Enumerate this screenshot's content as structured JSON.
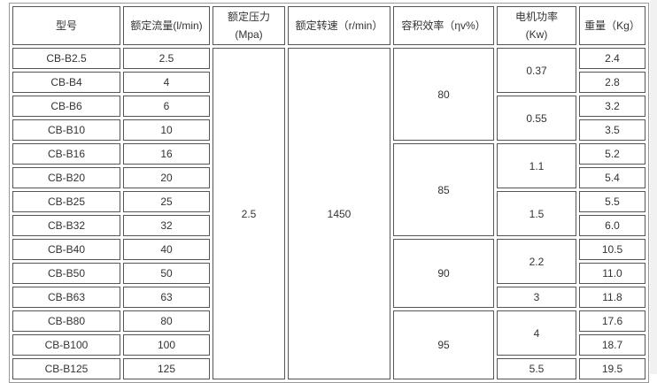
{
  "headers": [
    "型号",
    "额定流量(l/min)",
    "额定压力\n(Mpa)",
    "额定转速（r/min）",
    "容积效率（ηv%）",
    "电机功率\n(Kw)",
    "重量（Kg）"
  ],
  "rows": [
    {
      "model": "CB-B2.5",
      "flow": "2.5",
      "weight": "2.4"
    },
    {
      "model": "CB-B4",
      "flow": "4",
      "weight": "2.8"
    },
    {
      "model": "CB-B6",
      "flow": "6",
      "weight": "3.2"
    },
    {
      "model": "CB-B10",
      "flow": "10",
      "weight": "3.5"
    },
    {
      "model": "CB-B16",
      "flow": "16",
      "weight": "5.2"
    },
    {
      "model": "CB-B20",
      "flow": "20",
      "weight": "5.4"
    },
    {
      "model": "CB-B25",
      "flow": "25",
      "weight": "5.5"
    },
    {
      "model": "CB-B32",
      "flow": "32",
      "weight": "6.0"
    },
    {
      "model": "CB-B40",
      "flow": "40",
      "weight": "10.5"
    },
    {
      "model": "CB-B50",
      "flow": "50",
      "weight": "11.0"
    },
    {
      "model": "CB-B63",
      "flow": "63",
      "weight": "11.8"
    },
    {
      "model": "CB-B80",
      "flow": "80",
      "weight": "17.6"
    },
    {
      "model": "CB-B100",
      "flow": "100",
      "weight": "18.7"
    },
    {
      "model": "CB-B125",
      "flow": "125",
      "weight": "19.5"
    }
  ],
  "pressure": "2.5",
  "speed": "1450",
  "efficiency_groups": [
    {
      "value": "80",
      "rows": 4
    },
    {
      "value": "85",
      "rows": 4
    },
    {
      "value": "90",
      "rows": 3
    },
    {
      "value": "95",
      "rows": 3
    }
  ],
  "power_groups": [
    {
      "value": "0.37",
      "rows": 2
    },
    {
      "value": "0.55",
      "rows": 2
    },
    {
      "value": "1.1",
      "rows": 2
    },
    {
      "value": "1.5",
      "rows": 2
    },
    {
      "value": "2.2",
      "rows": 2
    },
    {
      "value": "3",
      "rows": 1
    },
    {
      "value": "4",
      "rows": 2
    },
    {
      "value": "5.5",
      "rows": 1
    }
  ]
}
